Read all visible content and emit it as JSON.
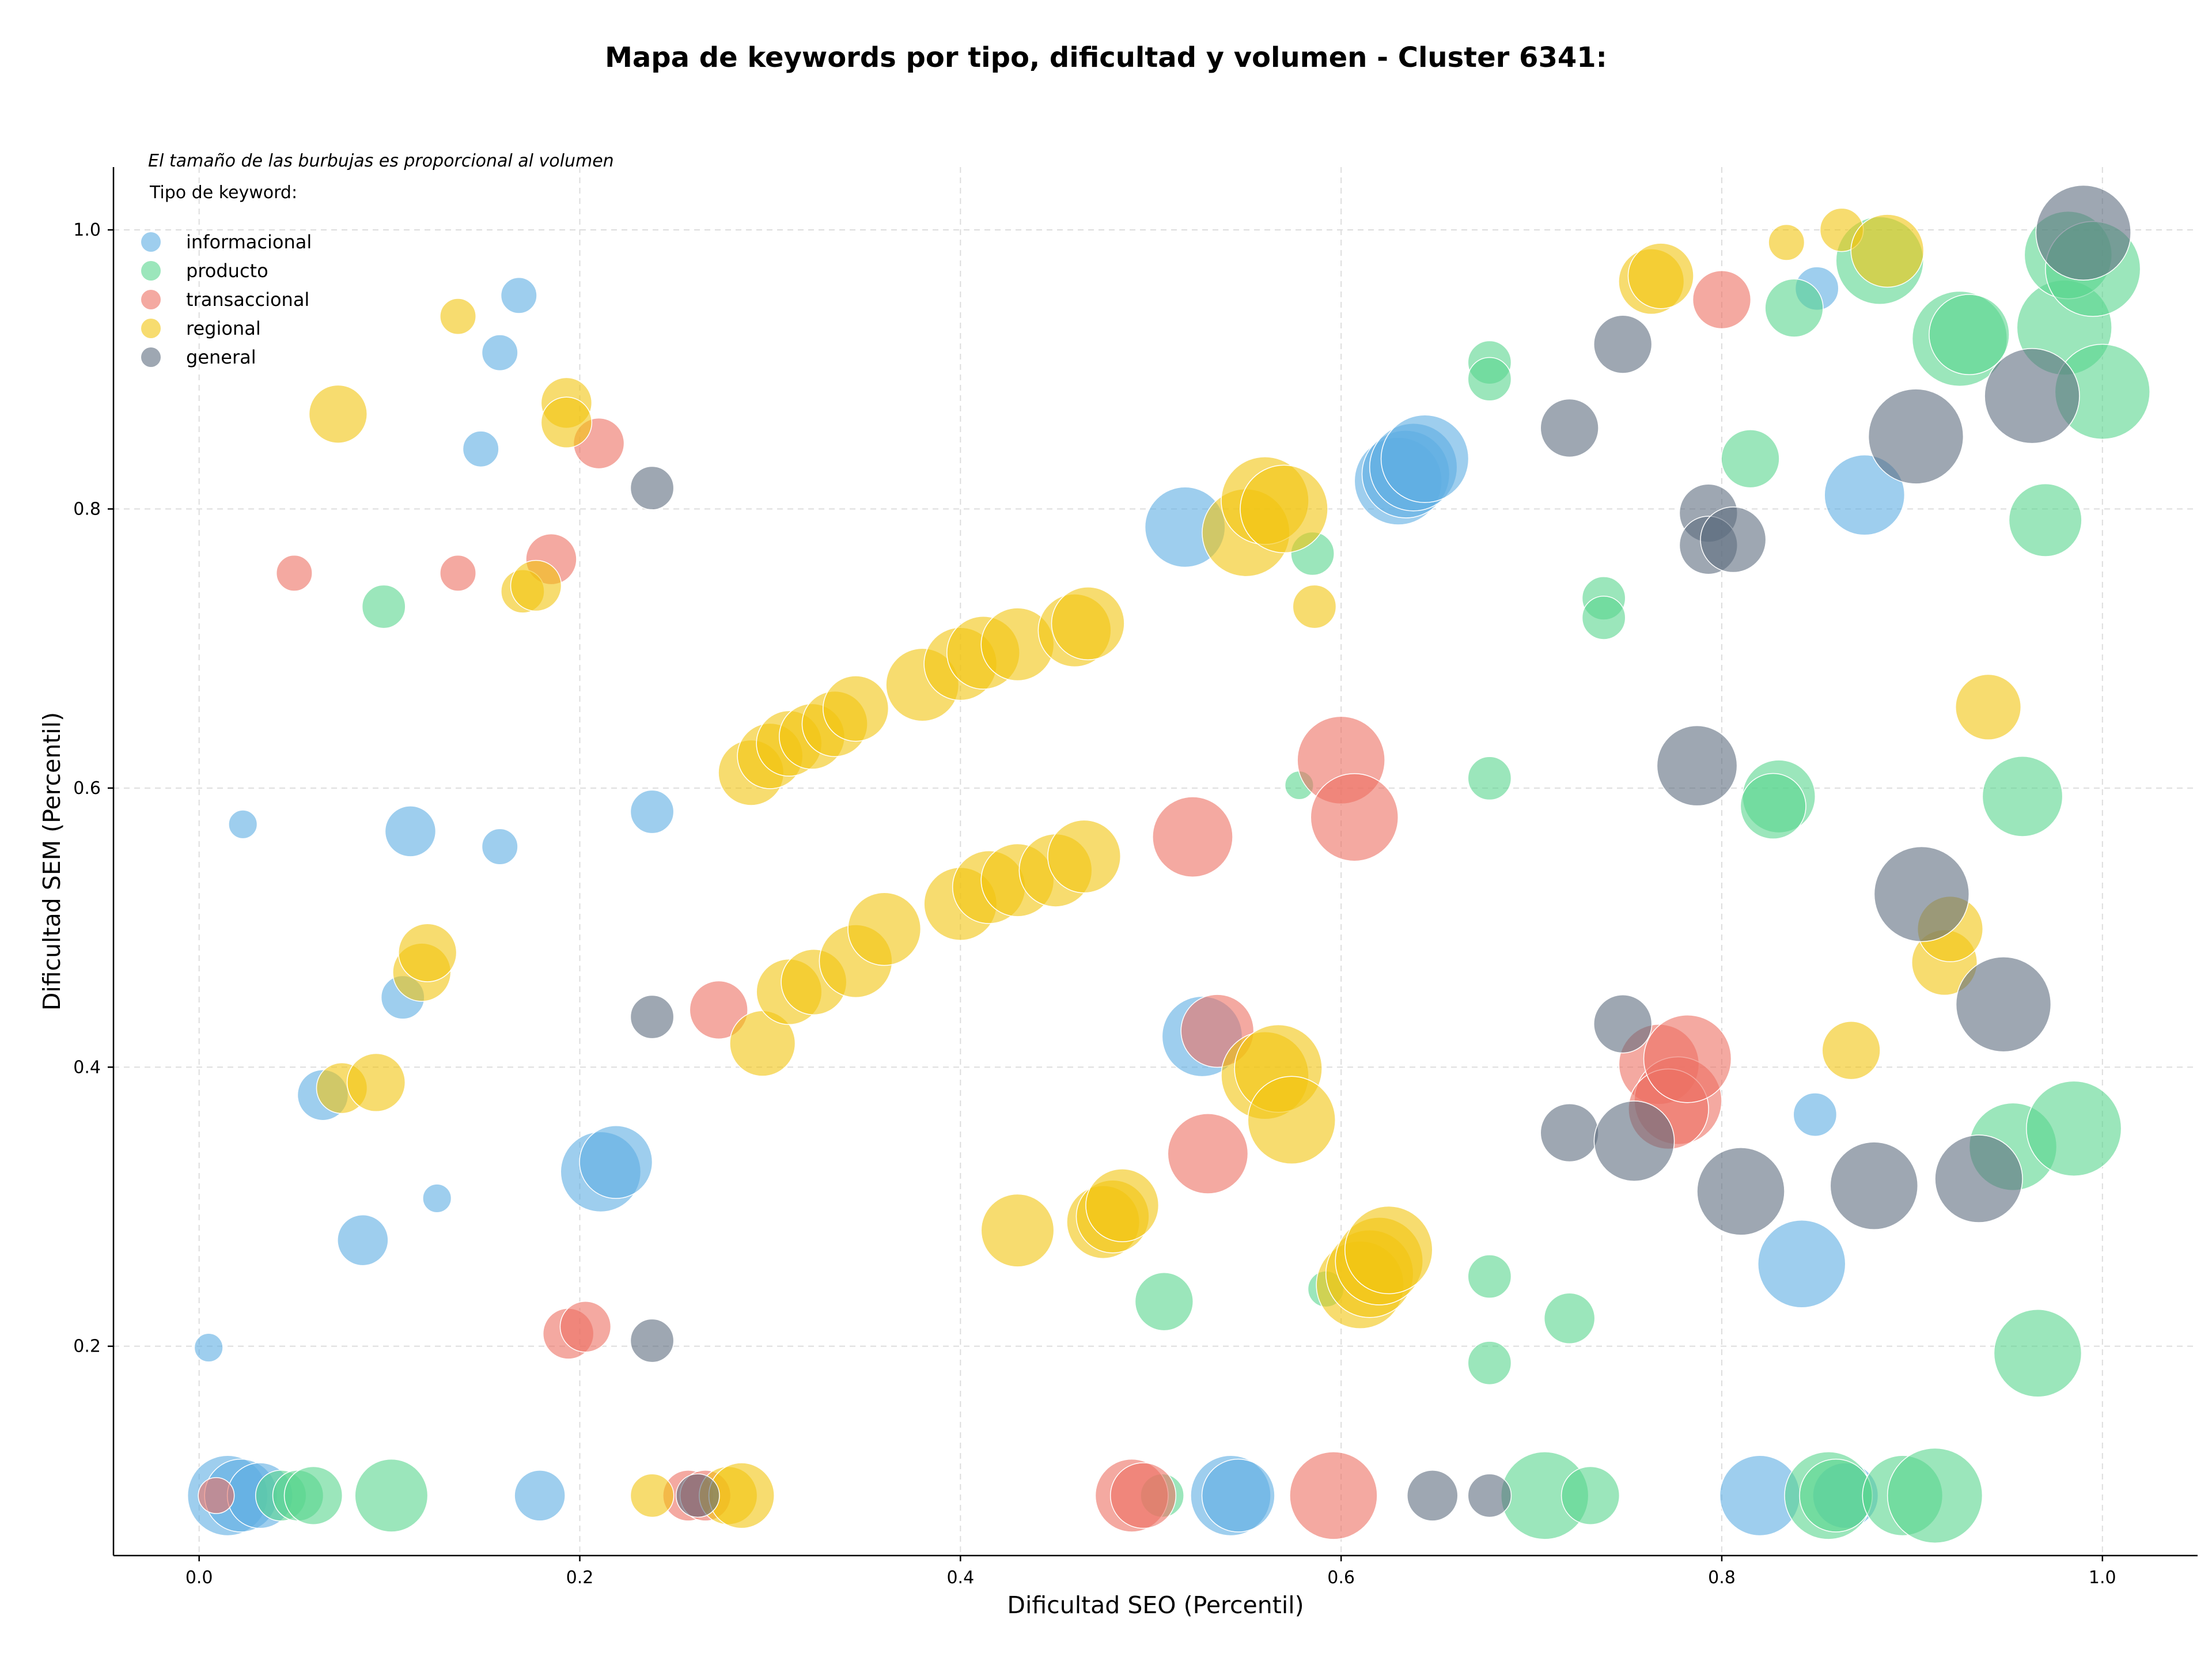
{
  "chart_data": {
    "type": "scatter",
    "title": "Mapa de keywords por tipo, dificultad y volumen - Cluster 6341:",
    "xlabel": "Dificultad SEO (Percentil)",
    "ylabel": "Dificultad SEM (Percentil)",
    "xlim": [
      -0.045,
      1.05
    ],
    "ylim": [
      0.05,
      1.045
    ],
    "xticks": [
      0.0,
      0.2,
      0.4,
      0.6,
      0.8,
      1.0
    ],
    "xtick_labels": [
      "0.0",
      "0.2",
      "0.4",
      "0.6",
      "0.8",
      "1.0"
    ],
    "yticks": [
      0.2,
      0.4,
      0.6,
      0.8,
      1.0
    ],
    "ytick_labels": [
      "0.2",
      "0.4",
      "0.6",
      "0.8",
      "1.0"
    ],
    "grid": true,
    "annotation": "El tamaño de las burbujas es proporcional al volumen",
    "legend": {
      "title": "Tipo de keyword:",
      "placement": "top-left",
      "entries": [
        "informacional",
        "producto",
        "transaccional",
        "regional",
        "general"
      ]
    },
    "series": [
      {
        "name": "informacional",
        "color": "#5dade2",
        "points": [
          [
            0.005,
            0.199,
            2
          ],
          [
            0.023,
            0.574,
            2
          ],
          [
            0.015,
            0.093,
            9
          ],
          [
            0.022,
            0.093,
            8
          ],
          [
            0.032,
            0.093,
            7
          ],
          [
            0.065,
            0.38,
            5
          ],
          [
            0.086,
            0.276,
            5
          ],
          [
            0.107,
            0.45,
            4
          ],
          [
            0.111,
            0.569,
            5
          ],
          [
            0.125,
            0.306,
            2
          ],
          [
            0.148,
            0.843,
            3
          ],
          [
            0.158,
            0.912,
            3
          ],
          [
            0.158,
            0.558,
            3
          ],
          [
            0.168,
            0.953,
            3
          ],
          [
            0.179,
            0.093,
            5
          ],
          [
            0.211,
            0.325,
            9
          ],
          [
            0.219,
            0.332,
            8
          ],
          [
            0.238,
            0.583,
            4
          ],
          [
            0.518,
            0.787,
            9
          ],
          [
            0.527,
            0.422,
            9
          ],
          [
            0.542,
            0.093,
            9
          ],
          [
            0.546,
            0.093,
            8
          ],
          [
            0.63,
            0.82,
            10
          ],
          [
            0.634,
            0.825,
            10
          ],
          [
            0.638,
            0.83,
            10
          ],
          [
            0.644,
            0.836,
            10
          ],
          [
            0.82,
            0.093,
            9
          ],
          [
            0.842,
            0.259,
            10
          ],
          [
            0.849,
            0.366,
            4
          ],
          [
            0.85,
            0.958,
            4
          ],
          [
            0.875,
            0.81,
            9
          ],
          [
            0.865,
            0.093,
            7
          ]
        ]
      },
      {
        "name": "producto",
        "color": "#58d68d",
        "points": [
          [
            0.043,
            0.093,
            5
          ],
          [
            0.052,
            0.093,
            5
          ],
          [
            0.06,
            0.093,
            6
          ],
          [
            0.101,
            0.093,
            8
          ],
          [
            0.097,
            0.73,
            4
          ],
          [
            0.507,
            0.232,
            6
          ],
          [
            0.506,
            0.093,
            4
          ],
          [
            0.578,
            0.602,
            2
          ],
          [
            0.585,
            0.768,
            4
          ],
          [
            0.592,
            0.241,
            3
          ],
          [
            0.678,
            0.905,
            4
          ],
          [
            0.678,
            0.893,
            4
          ],
          [
            0.678,
            0.607,
            4
          ],
          [
            0.678,
            0.25,
            4
          ],
          [
            0.678,
            0.188,
            4
          ],
          [
            0.707,
            0.093,
            10
          ],
          [
            0.72,
            0.22,
            5
          ],
          [
            0.731,
            0.093,
            6
          ],
          [
            0.738,
            0.736,
            4
          ],
          [
            0.738,
            0.722,
            4
          ],
          [
            0.815,
            0.836,
            6
          ],
          [
            0.83,
            0.594,
            8
          ],
          [
            0.827,
            0.587,
            7
          ],
          [
            0.838,
            0.944,
            6
          ],
          [
            0.856,
            0.093,
            10
          ],
          [
            0.86,
            0.093,
            8
          ],
          [
            0.883,
            0.978,
            10
          ],
          [
            0.895,
            0.093,
            9
          ],
          [
            0.912,
            0.093,
            11
          ],
          [
            0.925,
            0.922,
            11
          ],
          [
            0.93,
            0.925,
            9
          ],
          [
            0.953,
            0.343,
            10
          ],
          [
            0.958,
            0.594,
            9
          ],
          [
            0.966,
            0.195,
            10
          ],
          [
            0.97,
            0.792,
            8
          ],
          [
            0.98,
            0.93,
            11
          ],
          [
            0.985,
            0.356,
            11
          ],
          [
            0.982,
            0.982,
            10
          ],
          [
            0.995,
            0.972,
            11
          ],
          [
            1.0,
            0.884,
            11
          ]
        ]
      },
      {
        "name": "transaccional",
        "color": "#ec7063",
        "points": [
          [
            0.009,
            0.093,
            3
          ],
          [
            0.05,
            0.754,
            3
          ],
          [
            0.136,
            0.754,
            3
          ],
          [
            0.185,
            0.764,
            5
          ],
          [
            0.194,
            0.209,
            5
          ],
          [
            0.203,
            0.214,
            5
          ],
          [
            0.21,
            0.847,
            5
          ],
          [
            0.257,
            0.093,
            5
          ],
          [
            0.266,
            0.093,
            5
          ],
          [
            0.273,
            0.441,
            6
          ],
          [
            0.49,
            0.093,
            8
          ],
          [
            0.496,
            0.093,
            7
          ],
          [
            0.522,
            0.565,
            9
          ],
          [
            0.53,
            0.338,
            9
          ],
          [
            0.535,
            0.426,
            8
          ],
          [
            0.596,
            0.093,
            10
          ],
          [
            0.6,
            0.62,
            10
          ],
          [
            0.607,
            0.579,
            10
          ],
          [
            0.767,
            0.402,
            9
          ],
          [
            0.777,
            0.376,
            10
          ],
          [
            0.772,
            0.37,
            9
          ],
          [
            0.782,
            0.406,
            10
          ],
          [
            0.8,
            0.95,
            6
          ]
        ]
      },
      {
        "name": "regional",
        "color": "#f1c40f",
        "points": [
          [
            0.073,
            0.868,
            6
          ],
          [
            0.075,
            0.385,
            5
          ],
          [
            0.093,
            0.389,
            6
          ],
          [
            0.136,
            0.938,
            3
          ],
          [
            0.17,
            0.741,
            4
          ],
          [
            0.177,
            0.745,
            5
          ],
          [
            0.193,
            0.876,
            5
          ],
          [
            0.193,
            0.862,
            5
          ],
          [
            0.117,
            0.468,
            6
          ],
          [
            0.12,
            0.482,
            6
          ],
          [
            0.238,
            0.093,
            4
          ],
          [
            0.278,
            0.093,
            6
          ],
          [
            0.285,
            0.093,
            7
          ],
          [
            0.29,
            0.611,
            7
          ],
          [
            0.3,
            0.623,
            7
          ],
          [
            0.31,
            0.632,
            7
          ],
          [
            0.322,
            0.637,
            7
          ],
          [
            0.334,
            0.646,
            7
          ],
          [
            0.345,
            0.657,
            7
          ],
          [
            0.296,
            0.417,
            7
          ],
          [
            0.31,
            0.454,
            7
          ],
          [
            0.323,
            0.461,
            7
          ],
          [
            0.345,
            0.476,
            8
          ],
          [
            0.36,
            0.499,
            8
          ],
          [
            0.38,
            0.674,
            8
          ],
          [
            0.4,
            0.689,
            8
          ],
          [
            0.412,
            0.697,
            8
          ],
          [
            0.43,
            0.703,
            8
          ],
          [
            0.46,
            0.713,
            8
          ],
          [
            0.467,
            0.718,
            8
          ],
          [
            0.4,
            0.517,
            8
          ],
          [
            0.415,
            0.529,
            8
          ],
          [
            0.43,
            0.534,
            8
          ],
          [
            0.45,
            0.541,
            8
          ],
          [
            0.465,
            0.551,
            8
          ],
          [
            0.43,
            0.283,
            8
          ],
          [
            0.475,
            0.289,
            8
          ],
          [
            0.48,
            0.293,
            8
          ],
          [
            0.485,
            0.301,
            8
          ],
          [
            0.55,
            0.783,
            10
          ],
          [
            0.56,
            0.806,
            10
          ],
          [
            0.57,
            0.8,
            10
          ],
          [
            0.56,
            0.394,
            10
          ],
          [
            0.567,
            0.399,
            10
          ],
          [
            0.574,
            0.362,
            10
          ],
          [
            0.586,
            0.73,
            4
          ],
          [
            0.61,
            0.244,
            10
          ],
          [
            0.615,
            0.252,
            10
          ],
          [
            0.62,
            0.261,
            10
          ],
          [
            0.625,
            0.269,
            10
          ],
          [
            0.763,
            0.963,
            7
          ],
          [
            0.768,
            0.967,
            7
          ],
          [
            0.834,
            0.991,
            3
          ],
          [
            0.863,
            1.0,
            4
          ],
          [
            0.868,
            0.412,
            6
          ],
          [
            0.887,
            0.985,
            8
          ],
          [
            0.917,
            0.475,
            7
          ],
          [
            0.92,
            0.499,
            7
          ],
          [
            0.94,
            0.658,
            7
          ]
        ]
      },
      {
        "name": "general",
        "color": "#5d6d7e",
        "points": [
          [
            0.238,
            0.815,
            4
          ],
          [
            0.238,
            0.436,
            4
          ],
          [
            0.238,
            0.204,
            4
          ],
          [
            0.262,
            0.093,
            4
          ],
          [
            0.648,
            0.093,
            5
          ],
          [
            0.678,
            0.093,
            4
          ],
          [
            0.72,
            0.858,
            6
          ],
          [
            0.72,
            0.353,
            6
          ],
          [
            0.748,
            0.918,
            6
          ],
          [
            0.748,
            0.431,
            6
          ],
          [
            0.754,
            0.347,
            9
          ],
          [
            0.787,
            0.616,
            9
          ],
          [
            0.793,
            0.797,
            6
          ],
          [
            0.793,
            0.774,
            6
          ],
          [
            0.806,
            0.778,
            7
          ],
          [
            0.81,
            0.311,
            10
          ],
          [
            0.88,
            0.315,
            10
          ],
          [
            0.902,
            0.852,
            11
          ],
          [
            0.905,
            0.524,
            11
          ],
          [
            0.935,
            0.32,
            10
          ],
          [
            0.948,
            0.445,
            11
          ],
          [
            0.963,
            0.881,
            11
          ],
          [
            0.99,
            0.998,
            11
          ]
        ]
      }
    ]
  }
}
